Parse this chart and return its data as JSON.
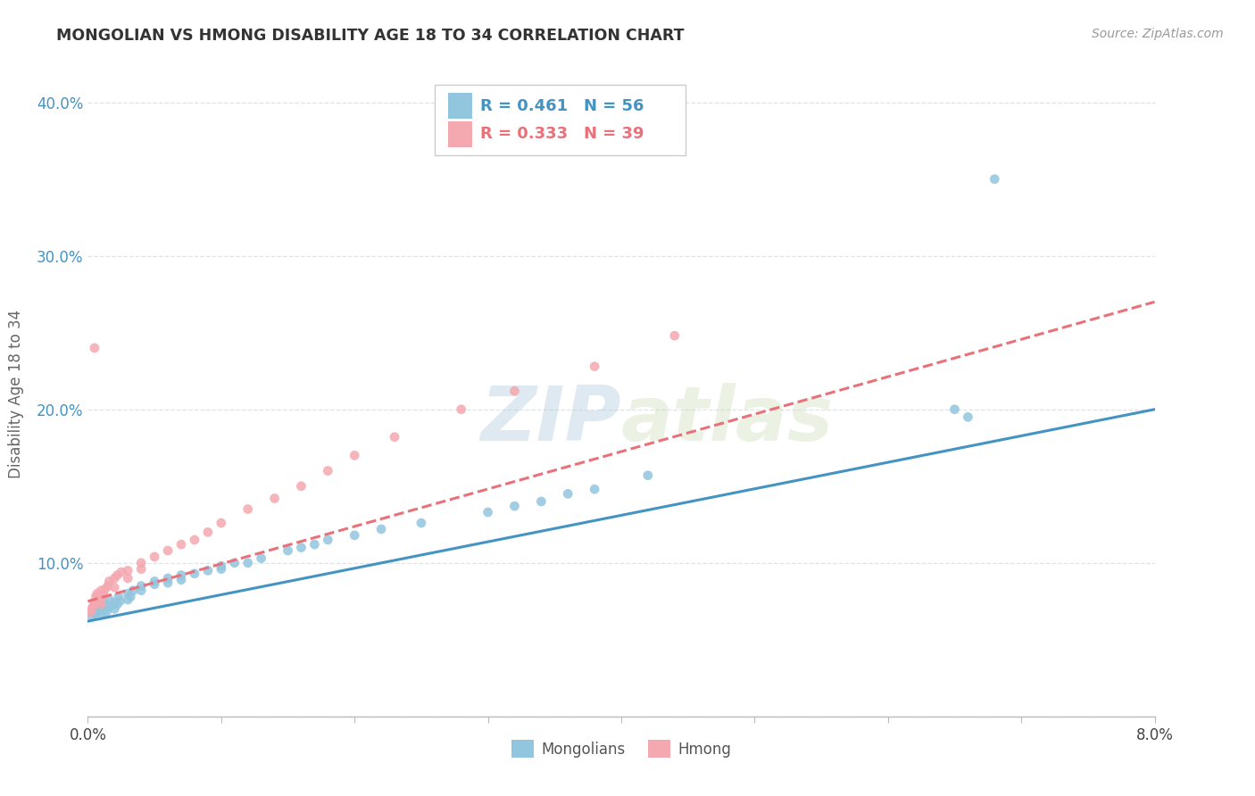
{
  "title": "MONGOLIAN VS HMONG DISABILITY AGE 18 TO 34 CORRELATION CHART",
  "source": "Source: ZipAtlas.com",
  "ylabel": "Disability Age 18 to 34",
  "xlim": [
    0.0,
    0.08
  ],
  "ylim": [
    0.0,
    0.42
  ],
  "mongolian_R": 0.461,
  "mongolian_N": 56,
  "hmong_R": 0.333,
  "hmong_N": 39,
  "mongolian_color": "#92c5de",
  "hmong_color": "#f4a8b0",
  "trend_mongolian_color": "#4393c3",
  "trend_hmong_color": "#e8717a",
  "background_color": "#ffffff",
  "grid_color": "#d0e4f0",
  "mongolian_x": [
    0.0003,
    0.0004,
    0.0005,
    0.0006,
    0.0007,
    0.0008,
    0.0009,
    0.001,
    0.001,
    0.001,
    0.0012,
    0.0013,
    0.0014,
    0.0015,
    0.0016,
    0.0017,
    0.002,
    0.002,
    0.0022,
    0.0023,
    0.0024,
    0.003,
    0.003,
    0.0032,
    0.0034,
    0.004,
    0.004,
    0.005,
    0.005,
    0.006,
    0.006,
    0.007,
    0.007,
    0.008,
    0.009,
    0.01,
    0.01,
    0.011,
    0.012,
    0.013,
    0.015,
    0.016,
    0.017,
    0.018,
    0.02,
    0.022,
    0.025,
    0.03,
    0.032,
    0.034,
    0.036,
    0.038,
    0.042,
    0.065,
    0.066,
    0.068
  ],
  "mongolian_y": [
    0.065,
    0.068,
    0.07,
    0.067,
    0.072,
    0.069,
    0.074,
    0.067,
    0.071,
    0.075,
    0.069,
    0.073,
    0.068,
    0.071,
    0.076,
    0.072,
    0.07,
    0.074,
    0.073,
    0.078,
    0.075,
    0.076,
    0.08,
    0.078,
    0.082,
    0.082,
    0.085,
    0.086,
    0.088,
    0.087,
    0.09,
    0.089,
    0.092,
    0.093,
    0.095,
    0.098,
    0.096,
    0.1,
    0.1,
    0.103,
    0.108,
    0.11,
    0.112,
    0.115,
    0.118,
    0.122,
    0.126,
    0.133,
    0.137,
    0.14,
    0.145,
    0.148,
    0.157,
    0.2,
    0.195,
    0.35
  ],
  "hmong_x": [
    0.0002,
    0.0003,
    0.0004,
    0.0005,
    0.0005,
    0.0006,
    0.0007,
    0.0008,
    0.001,
    0.001,
    0.001,
    0.0012,
    0.0013,
    0.0015,
    0.0016,
    0.002,
    0.002,
    0.0022,
    0.0025,
    0.003,
    0.003,
    0.004,
    0.004,
    0.005,
    0.006,
    0.007,
    0.008,
    0.009,
    0.01,
    0.012,
    0.014,
    0.016,
    0.018,
    0.02,
    0.023,
    0.028,
    0.032,
    0.038,
    0.044
  ],
  "hmong_y": [
    0.068,
    0.07,
    0.072,
    0.074,
    0.24,
    0.078,
    0.08,
    0.076,
    0.073,
    0.077,
    0.082,
    0.079,
    0.083,
    0.085,
    0.088,
    0.084,
    0.09,
    0.092,
    0.094,
    0.09,
    0.095,
    0.096,
    0.1,
    0.104,
    0.108,
    0.112,
    0.115,
    0.12,
    0.126,
    0.135,
    0.142,
    0.15,
    0.16,
    0.17,
    0.182,
    0.2,
    0.212,
    0.228,
    0.248
  ],
  "trend_mon_x0": 0.0,
  "trend_mon_x1": 0.08,
  "trend_mon_y0": 0.062,
  "trend_mon_y1": 0.2,
  "trend_hmong_x0": 0.0,
  "trend_hmong_x1": 0.08,
  "trend_hmong_y0": 0.075,
  "trend_hmong_y1": 0.27
}
